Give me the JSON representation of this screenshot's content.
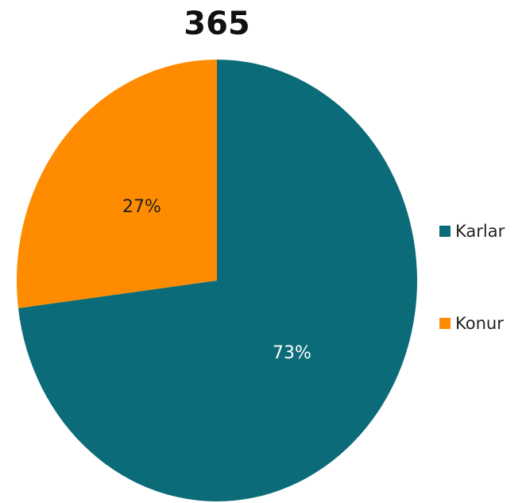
{
  "chart_data": {
    "type": "pie",
    "title": "365",
    "categories": [
      "Karlar",
      "Konur"
    ],
    "values": [
      73,
      27
    ],
    "value_labels": [
      "73%",
      "27%"
    ],
    "colors": [
      "#0b6b78",
      "#ff8c00"
    ],
    "legend": "right"
  }
}
